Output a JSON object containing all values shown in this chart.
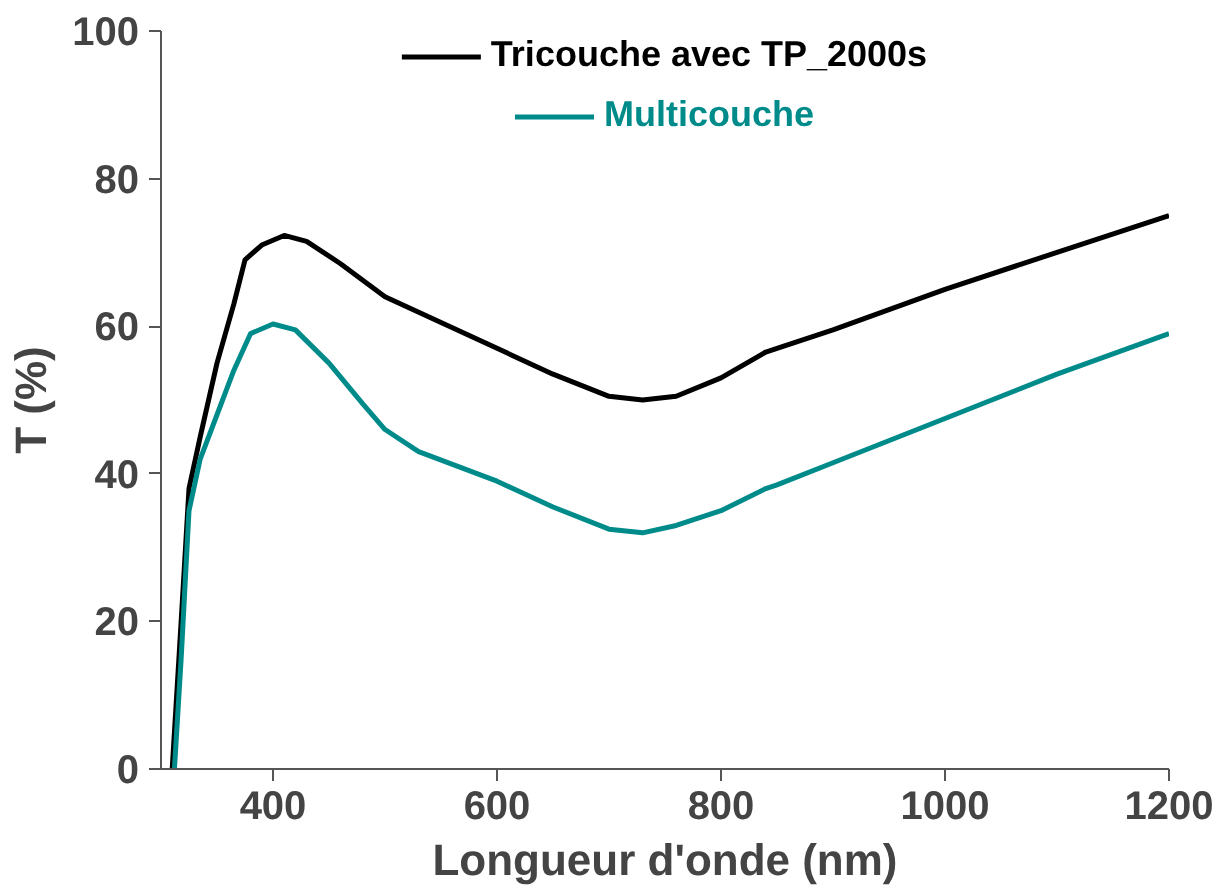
{
  "chart_data": {
    "type": "line",
    "xlabel": "Longueur d'onde (nm)",
    "ylabel": "T (%)",
    "xlim": [
      300,
      1200
    ],
    "ylim": [
      0,
      100
    ],
    "xticks": [
      400,
      600,
      800,
      1000,
      1200
    ],
    "yticks": [
      0,
      20,
      40,
      60,
      80,
      100
    ],
    "grid": false,
    "legend": "top",
    "marker": "none",
    "line_style": "solid",
    "series": [
      {
        "name": "Tricouche avec TP_2000s",
        "color": "#000000",
        "x": [
          310,
          318,
          325,
          335,
          350,
          365,
          375,
          390,
          410,
          430,
          460,
          500,
          550,
          600,
          650,
          700,
          730,
          760,
          800,
          840,
          850,
          900,
          1000,
          1100,
          1200
        ],
        "values": [
          0,
          20,
          38,
          45,
          55,
          63,
          69,
          71,
          72.3,
          71.5,
          68.5,
          64,
          60.5,
          57,
          53.5,
          50.5,
          50,
          50.5,
          53,
          56.5,
          57,
          59.5,
          65,
          70,
          75
        ]
      },
      {
        "name": "Multicouche",
        "color": "#008b8b",
        "x": [
          312,
          318,
          325,
          335,
          350,
          365,
          380,
          400,
          420,
          450,
          480,
          500,
          530,
          600,
          650,
          700,
          730,
          760,
          800,
          840,
          850,
          900,
          1000,
          1100,
          1200
        ],
        "values": [
          0,
          15,
          35,
          42,
          48,
          54,
          59,
          60.3,
          59.5,
          55,
          49.5,
          46,
          43,
          39,
          35.5,
          32.5,
          32,
          33,
          35,
          38,
          38.5,
          41.5,
          47.5,
          53.5,
          59
        ]
      }
    ]
  }
}
